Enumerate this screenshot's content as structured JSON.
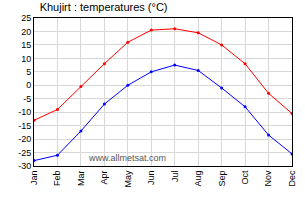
{
  "chart_data": {
    "type": "line",
    "title": "Khujirt : temperatures (°C)",
    "annotation": "www.allmetsat.com",
    "categories": [
      "Jan",
      "Feb",
      "Mar",
      "Apr",
      "May",
      "Jun",
      "Jul",
      "Aug",
      "Sep",
      "Oct",
      "Nov",
      "Dec"
    ],
    "series": [
      {
        "color": "#ff0000",
        "marker": "circle",
        "values": [
          -13,
          -9,
          -0.5,
          8,
          16,
          20.5,
          21,
          19.5,
          15,
          8,
          -3,
          -10.5
        ]
      },
      {
        "color": "#0000ff",
        "marker": "circle",
        "values": [
          -28,
          -26,
          -17,
          -7,
          0,
          5,
          7.5,
          5.5,
          -1,
          -8,
          -18.5,
          -25.5
        ]
      }
    ],
    "ylim": [
      -30,
      25
    ],
    "yticks": [
      -30,
      -25,
      -20,
      -15,
      -10,
      -5,
      0,
      5,
      10,
      15,
      20,
      25
    ],
    "grid": true
  }
}
